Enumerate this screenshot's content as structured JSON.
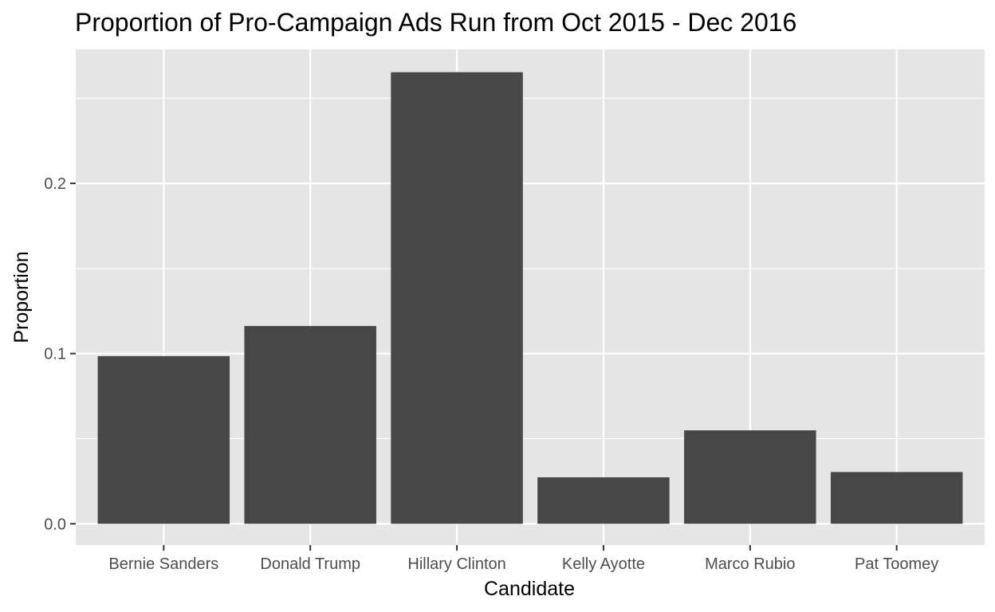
{
  "chart_data": {
    "type": "bar",
    "title": "Proportion of Pro-Campaign Ads Run from Oct 2015 - Dec 2016",
    "xlabel": "Candidate",
    "ylabel": "Proportion",
    "categories": [
      "Bernie Sanders",
      "Donald Trump",
      "Hillary Clinton",
      "Kelly Ayotte",
      "Marco Rubio",
      "Pat Toomey"
    ],
    "values": [
      0.0985,
      0.1162,
      0.2653,
      0.0273,
      0.0549,
      0.0304
    ],
    "ylim": [
      -0.0125,
      0.2787
    ],
    "yticks": [
      0.0,
      0.1,
      0.2
    ],
    "ytick_labels": [
      "0.0",
      "0.1",
      "0.2"
    ],
    "grid": true,
    "legend": "none",
    "colors": {
      "bar": "#474747",
      "panel_background": "#e5e5e5",
      "grid_line": "#ffffff",
      "tick_label": "#4d4d4d",
      "tick_mark": "#333333",
      "text": "#000000"
    }
  }
}
